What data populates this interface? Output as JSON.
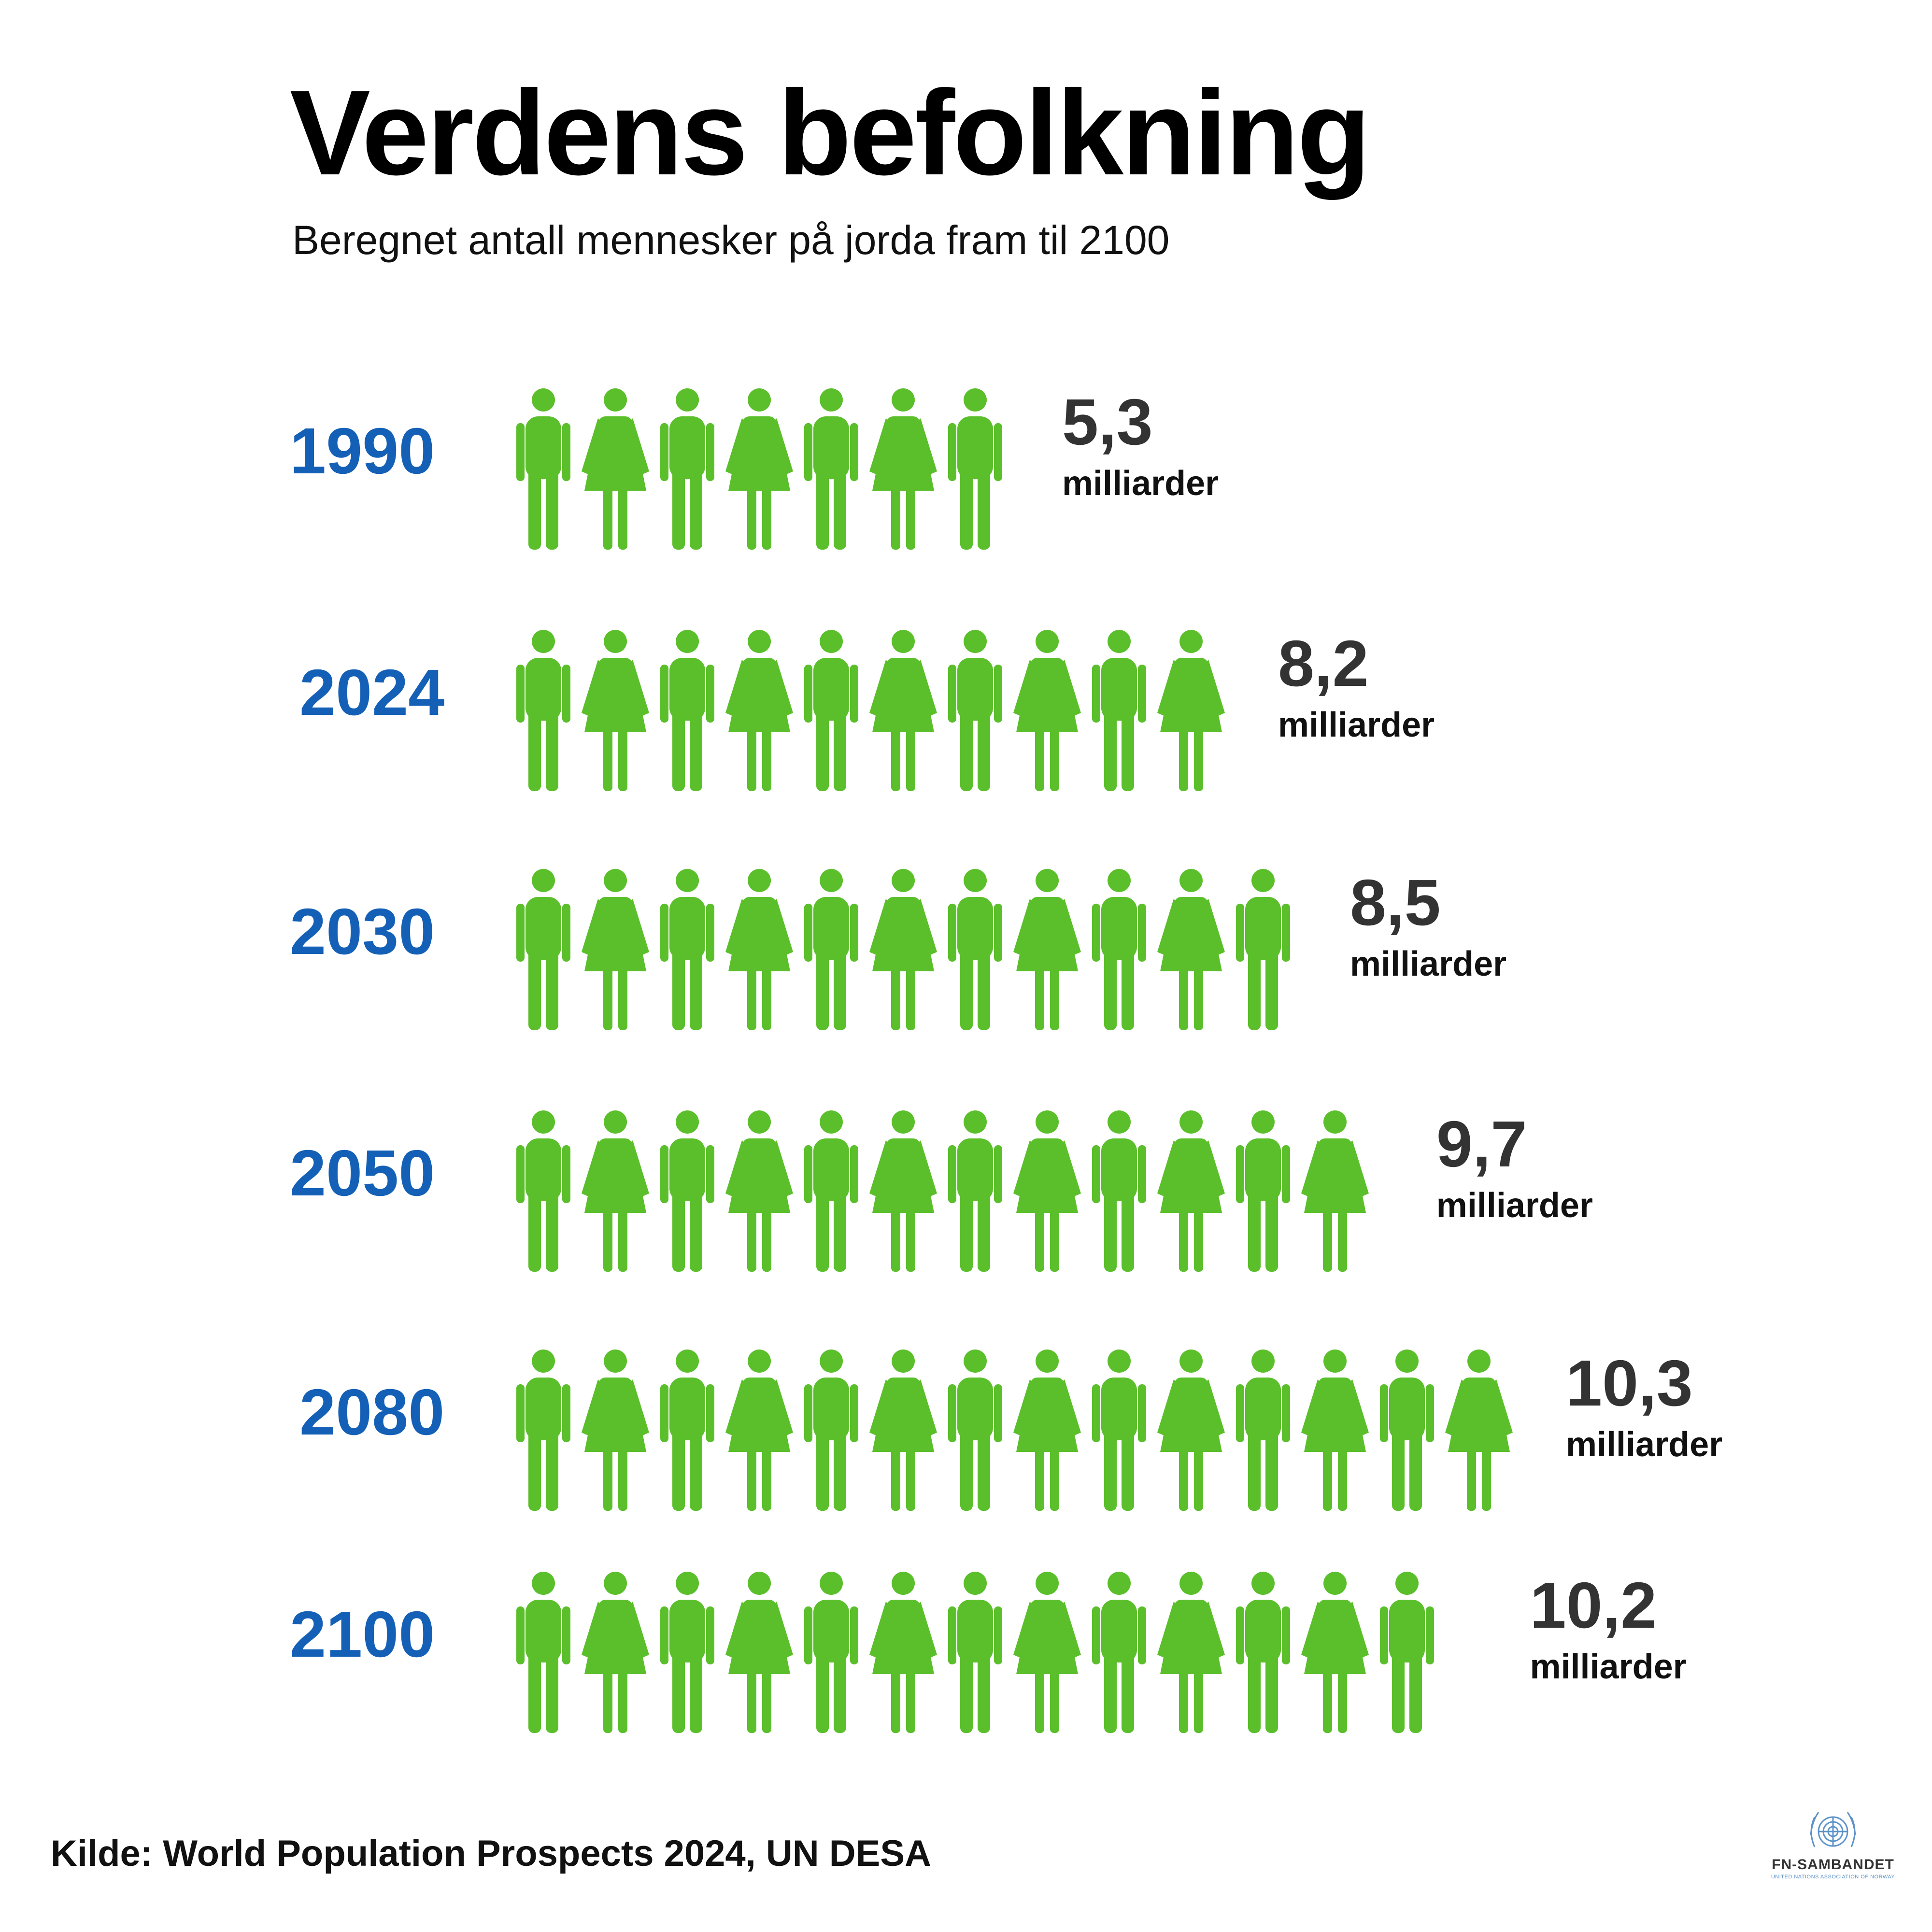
{
  "title": "Verdens befolkning",
  "subtitle": "Beregnet antall mennesker på jorda fram til 2100",
  "source": "Kilde: World Population Prospects 2024, UN DESA",
  "logo": {
    "name": "FN-SAMBANDET",
    "tagline": "UNITED NATIONS ASSOCIATION OF NORWAY",
    "icon": "un-emblem-icon"
  },
  "colors": {
    "year": "#1560b7",
    "icon": "#5bbf2b",
    "value": "#333333",
    "unit": "#111111"
  },
  "chart_data": {
    "type": "pictogram",
    "unit": "milliarder",
    "title": "Verdens befolkning",
    "subtitle": "Beregnet antall mennesker på jorda fram til 2100",
    "rows": [
      {
        "year": "1990",
        "value": 5.3,
        "label": "5,3",
        "unit": "milliarder",
        "icons": 7
      },
      {
        "year": "2024",
        "value": 8.2,
        "label": "8,2",
        "unit": "milliarder",
        "icons": 10
      },
      {
        "year": "2030",
        "value": 8.5,
        "label": "8,5",
        "unit": "milliarder",
        "icons": 11
      },
      {
        "year": "2050",
        "value": 9.7,
        "label": "9,7",
        "unit": "milliarder",
        "icons": 12.2
      },
      {
        "year": "2080",
        "value": 10.3,
        "label": "10,3",
        "unit": "milliarder",
        "icons": 14
      },
      {
        "year": "2100",
        "value": 10.2,
        "label": "10,2",
        "unit": "milliarder",
        "icons": 13.5
      }
    ]
  }
}
